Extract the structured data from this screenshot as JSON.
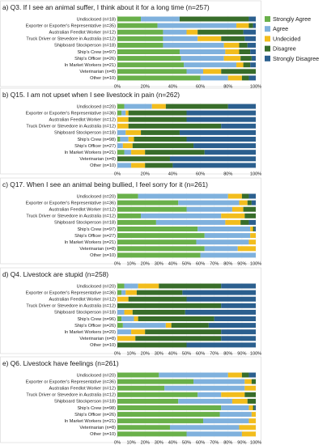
{
  "colors": {
    "strongly_agree": "#69b04a",
    "agree": "#7fb1dd",
    "undecided": "#f2bd1d",
    "disagree": "#386d2a",
    "strongly_disagree": "#2b5f8e"
  },
  "legend": [
    {
      "label": "Strongly Agree",
      "color_key": "strongly_agree"
    },
    {
      "label": "Agree",
      "color_key": "agree"
    },
    {
      "label": "Undecided",
      "color_key": "undecided"
    },
    {
      "label": "Disagree",
      "color_key": "disagree"
    },
    {
      "label": "Strongly Disagree",
      "color_key": "strongly_disagree"
    }
  ],
  "chart_data": [
    {
      "type": "bar",
      "orientation": "horizontal",
      "stacked": true,
      "title": "a) Q3. If I see an animal suffer, I think about it for a long time (n=257)",
      "categories": [
        "Undisclosed (n=18)",
        "Exporter or Exporter's Representative (n=35)",
        "Australian Feedlot Worker (n=12)",
        "Truck Driver or Stevedore in Australia (n=12)",
        "Shipboard Stockperson (n=18)",
        "Ship's Crew (n=97)",
        "Ship's Officer (n=26)",
        "In Market Workers (n=21)",
        "Veterinarian (n=8)",
        "Other (n=10)"
      ],
      "xlim": [
        0,
        100
      ],
      "xticks": [
        "0%",
        "20%",
        "40%",
        "60%",
        "80%",
        "100%"
      ],
      "series": [
        {
          "name": "Strongly Agree",
          "values": [
            17,
            29,
            33,
            33,
            33,
            45,
            46,
            48,
            50,
            60
          ]
        },
        {
          "name": "Agree",
          "values": [
            28,
            57,
            17,
            25,
            44,
            33,
            31,
            38,
            12,
            20
          ]
        },
        {
          "name": "Undecided",
          "values": [
            0,
            9,
            8,
            17,
            11,
            10,
            12,
            5,
            13,
            10
          ]
        },
        {
          "name": "Disagree",
          "values": [
            50,
            3,
            33,
            17,
            6,
            8,
            8,
            5,
            25,
            5
          ]
        },
        {
          "name": "Strongly Disagree",
          "values": [
            5,
            2,
            9,
            8,
            6,
            4,
            3,
            4,
            0,
            5
          ]
        }
      ]
    },
    {
      "type": "bar",
      "orientation": "horizontal",
      "stacked": true,
      "title": "b) Q15. I am not upset when I see livestock in pain (n=262)",
      "categories": [
        "Undisclosed (n=20)",
        "Exporter or Exporter's Representative (n=36)",
        "Australian Feedlot Worker (n=12)",
        "Truck Driver or Stevedore in Australia (n=12)",
        "Shipboard Stockperson (n=18)",
        "Ship's Crew (n=98)",
        "Ship's Officer (n=27)",
        "In Market Workers (n=21)",
        "Veterinarian (n=8)",
        "Other (n=10)"
      ],
      "xlim": [
        0,
        100
      ],
      "xticks": [
        "0%",
        "20%",
        "40%",
        "60%",
        "80%",
        "100%"
      ],
      "series": [
        {
          "name": "Strongly Agree",
          "values": [
            5,
            3,
            0,
            0,
            0,
            2,
            0,
            5,
            0,
            0
          ]
        },
        {
          "name": "Agree",
          "values": [
            20,
            3,
            0,
            0,
            6,
            6,
            4,
            5,
            0,
            10
          ]
        },
        {
          "name": "Undecided",
          "values": [
            10,
            2,
            8,
            8,
            11,
            4,
            7,
            10,
            0,
            10
          ]
        },
        {
          "name": "Disagree",
          "values": [
            45,
            42,
            42,
            67,
            28,
            38,
            44,
            43,
            38,
            20
          ]
        },
        {
          "name": "Strongly Disagree",
          "values": [
            20,
            50,
            50,
            25,
            55,
            50,
            45,
            37,
            62,
            60
          ]
        }
      ]
    },
    {
      "type": "bar",
      "orientation": "horizontal",
      "stacked": true,
      "title": "c) Q17. When I see an animal being bullied, I feel sorry for it (n=261)",
      "categories": [
        "Undisclosed (n=20)",
        "Exporter or Exporter's Representative (n=36)",
        "Australian Feedlot Worker (n=12)",
        "Truck Driver or Stevedore in Australia (n=12)",
        "Shipboard Stockperson (n=18)",
        "Ship's Crew (n=97)",
        "Ship's Officer (n=27)",
        "In Market Workers (n=21)",
        "Veterinarian (n=8)",
        "Other (n=10)"
      ],
      "xlim": [
        0,
        100
      ],
      "xticks": [
        "0%",
        "10%",
        "20%",
        "30%",
        "40%",
        "50%",
        "60%",
        "70%",
        "80%",
        "90%",
        "100%"
      ],
      "series": [
        {
          "name": "Strongly Agree",
          "values": [
            15,
            44,
            50,
            17,
            28,
            58,
            63,
            57,
            63,
            60
          ]
        },
        {
          "name": "Agree",
          "values": [
            65,
            44,
            33,
            58,
            50,
            38,
            33,
            38,
            24,
            40
          ]
        },
        {
          "name": "Undecided",
          "values": [
            10,
            6,
            8,
            17,
            11,
            2,
            4,
            5,
            13,
            0
          ]
        },
        {
          "name": "Disagree",
          "values": [
            5,
            3,
            9,
            8,
            6,
            1,
            0,
            0,
            0,
            0
          ]
        },
        {
          "name": "Strongly Disagree",
          "values": [
            5,
            3,
            0,
            0,
            5,
            1,
            0,
            0,
            0,
            0
          ]
        }
      ]
    },
    {
      "type": "bar",
      "orientation": "horizontal",
      "stacked": true,
      "title": "d) Q4. Livestock are stupid (n=258)",
      "categories": [
        "Undisclosed (n=20)",
        "Exporter or Exporter's Representative (n=36)",
        "Australian Feedlot Worker (n=12)",
        "Truck Driver or Stevedore in Australia (n=12)",
        "Shipboard Stockperson (n=18)",
        "Ship's Crew (n=96)",
        "Ship's Officer (n=26)",
        "In Market Workers (n=20)",
        "Veterinarian (n=8)",
        "Other (n=10)"
      ],
      "xlim": [
        0,
        100
      ],
      "xticks": [
        "0%",
        "10%",
        "20%",
        "30%",
        "40%",
        "50%",
        "60%",
        "70%",
        "80%",
        "90%",
        "100%"
      ],
      "series": [
        {
          "name": "Strongly Agree",
          "values": [
            5,
            3,
            0,
            0,
            0,
            3,
            4,
            0,
            0,
            0
          ]
        },
        {
          "name": "Agree",
          "values": [
            10,
            3,
            0,
            0,
            5,
            9,
            31,
            10,
            0,
            0
          ]
        },
        {
          "name": "Undecided",
          "values": [
            15,
            8,
            8,
            0,
            6,
            3,
            4,
            10,
            13,
            0
          ]
        },
        {
          "name": "Disagree",
          "values": [
            45,
            33,
            42,
            75,
            38,
            55,
            27,
            55,
            62,
            50
          ]
        },
        {
          "name": "Strongly Disagree",
          "values": [
            25,
            53,
            50,
            25,
            51,
            30,
            34,
            25,
            25,
            50
          ]
        }
      ]
    },
    {
      "type": "bar",
      "orientation": "horizontal",
      "stacked": true,
      "title": "e) Q6. Livestock have feelings (n=261)",
      "categories": [
        "Undisclosed (n=20)",
        "Exporter or Exporter's Representative (n=36)",
        "Australian Feedlot Worker (n=12)",
        "Truck Driver or Stevedore in Australia (n=12)",
        "Shipboard Stockperson (n=18)",
        "Ship's Crew (n=98)",
        "Ship's Officer (n=26)",
        "In Market Workers (n=21)",
        "Veterinarian (n=8)",
        "Other (n=10)"
      ],
      "xlim": [
        0,
        100
      ],
      "xticks": [
        "0%",
        "10%",
        "20%",
        "30%",
        "40%",
        "50%",
        "60%",
        "70%",
        "80%",
        "90%",
        "100%"
      ],
      "series": [
        {
          "name": "Strongly Agree",
          "values": [
            30,
            55,
            34,
            58,
            44,
            75,
            74,
            62,
            38,
            50
          ]
        },
        {
          "name": "Agree",
          "values": [
            50,
            37,
            58,
            17,
            39,
            20,
            23,
            33,
            50,
            40
          ]
        },
        {
          "name": "Undecided",
          "values": [
            10,
            5,
            8,
            17,
            11,
            3,
            3,
            5,
            12,
            10
          ]
        },
        {
          "name": "Disagree",
          "values": [
            5,
            3,
            0,
            8,
            6,
            1,
            0,
            0,
            0,
            0
          ]
        },
        {
          "name": "Strongly Disagree",
          "values": [
            5,
            0,
            0,
            0,
            0,
            1,
            0,
            0,
            0,
            0
          ]
        }
      ]
    }
  ]
}
